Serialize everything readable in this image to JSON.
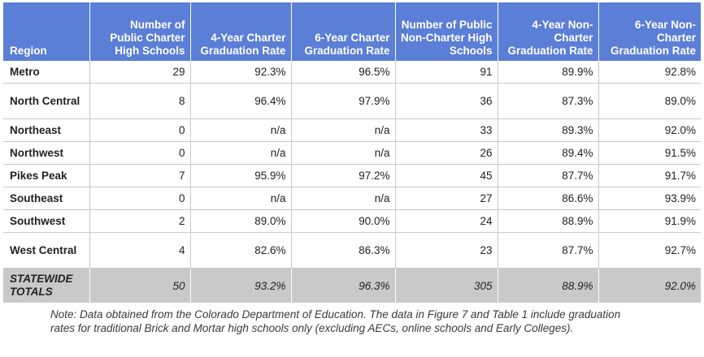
{
  "table": {
    "headers": [
      "Region",
      "Number of Public Charter High Schools",
      "4-Year Charter Graduation Rate",
      "6-Year Charter Graduation Rate",
      "Number of Public Non-Charter High Schools",
      "4-Year Non-Charter Graduation Rate",
      "6-Year Non-Charter Graduation Rate"
    ],
    "rows": [
      [
        "Metro",
        "29",
        "92.3%",
        "96.5%",
        "91",
        "89.9%",
        "92.8%"
      ],
      [
        "North Central",
        "8",
        "96.4%",
        "97.9%",
        "36",
        "87.3%",
        "89.0%"
      ],
      [
        "Northeast",
        "0",
        "n/a",
        "n/a",
        "33",
        "89.3%",
        "92.0%"
      ],
      [
        "Northwest",
        "0",
        "n/a",
        "n/a",
        "26",
        "89.4%",
        "91.5%"
      ],
      [
        "Pikes Peak",
        "7",
        "95.9%",
        "97.2%",
        "45",
        "87.7%",
        "91.7%"
      ],
      [
        "Southeast",
        "0",
        "n/a",
        "n/a",
        "27",
        "86.6%",
        "93.9%"
      ],
      [
        "Southwest",
        "2",
        "89.0%",
        "90.0%",
        "24",
        "88.9%",
        "91.9%"
      ],
      [
        "West Central",
        "4",
        "82.6%",
        "86.3%",
        "23",
        "87.7%",
        "92.7%"
      ]
    ],
    "totals": [
      "STATEWIDE TOTALS",
      "50",
      "93.2%",
      "96.3%",
      "305",
      "88.9%",
      "92.0%"
    ]
  },
  "note": "Note: Data obtained from the Colorado Department of Education. The data in Figure 7 and Table 1 include graduation rates for traditional Brick and Mortar high schools only (excluding AECs, online schools and Early Colleges).",
  "colors": {
    "header_bg": "#5b7ed6",
    "total_bg": "#c9c9c9",
    "grid": "#c8c8c8"
  }
}
